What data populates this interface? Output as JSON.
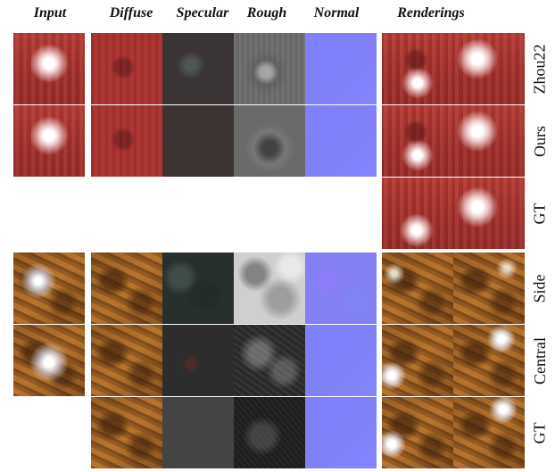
{
  "column_headers": {
    "input": "Input",
    "diffuse": "Diffuse",
    "specular": "Specular",
    "rough": "Rough",
    "normal": "Normal",
    "renderings": "Renderings"
  },
  "row_labels": {
    "zhou22": "Zhou22",
    "ours": "Ours",
    "gt_red": "GT",
    "side": "Side",
    "central": "Central",
    "gt_wood": "GT"
  }
}
